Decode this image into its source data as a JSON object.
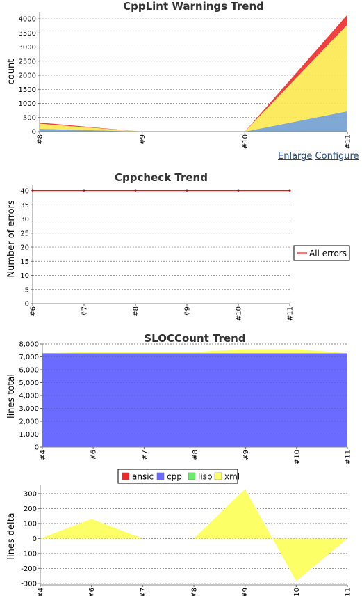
{
  "links": {
    "enlarge": "Enlarge",
    "configure": "Configure"
  },
  "chart_data": [
    {
      "type": "area",
      "stacked": true,
      "title": "CppLint Warnings Trend",
      "xlabel": "",
      "ylabel": "count",
      "categories": [
        "#8",
        "#9",
        "#10",
        "#11"
      ],
      "ylim": [
        0,
        4250
      ],
      "yticks": [
        0,
        500,
        1000,
        1500,
        2000,
        2500,
        3000,
        3500,
        4000
      ],
      "grid": true,
      "series": [
        {
          "values": [
            100,
            0,
            0,
            720
          ],
          "color": "#729fcf"
        },
        {
          "values": [
            180,
            0,
            0,
            3080
          ],
          "color": "#fce94f"
        },
        {
          "values": [
            40,
            0,
            0,
            350
          ],
          "color": "#ef2929"
        }
      ]
    },
    {
      "type": "line",
      "title": "Cppcheck Trend",
      "xlabel": "",
      "ylabel": "Number of errors",
      "categories": [
        "#6",
        "#7",
        "#8",
        "#9",
        "#10",
        "#11"
      ],
      "ylim": [
        0,
        42
      ],
      "yticks": [
        0,
        5,
        10,
        15,
        20,
        25,
        30,
        35,
        40
      ],
      "grid": true,
      "legend_position": "right",
      "series": [
        {
          "name": "All errors",
          "values": [
            40,
            40,
            40,
            40,
            40,
            40
          ],
          "color": "#cc0000"
        }
      ]
    },
    {
      "type": "area",
      "stacked": true,
      "title": "SLOCCount Trend",
      "xlabel": "",
      "ylabel": "lines total",
      "categories": [
        "#4",
        "#6",
        "#7",
        "#8",
        "#9",
        "#10",
        "#11"
      ],
      "ylim": [
        0,
        8000
      ],
      "yticks": [
        "0",
        "1,000",
        "2,000",
        "3,000",
        "4,000",
        "5,000",
        "6,000",
        "7,000",
        "8,000"
      ],
      "grid": true,
      "legend_position": "bottom",
      "series": [
        {
          "name": "ansic",
          "values": [
            30,
            30,
            30,
            30,
            30,
            30,
            30
          ],
          "color": "#ef2929"
        },
        {
          "name": "cpp",
          "values": [
            7250,
            7250,
            7250,
            7250,
            7250,
            7250,
            7250
          ],
          "color": "#6b6bff"
        },
        {
          "name": "lisp",
          "values": [
            0,
            0,
            0,
            0,
            0,
            0,
            0
          ],
          "color": "#66ee66"
        },
        {
          "name": "xml",
          "values": [
            0,
            100,
            100,
            100,
            330,
            330,
            0
          ],
          "color": "#fcff66"
        }
      ]
    },
    {
      "type": "area",
      "title": "",
      "xlabel": "",
      "ylabel": "lines delta",
      "categories": [
        "#4",
        "#6",
        "#7",
        "#8",
        "#9",
        "#10",
        "#11"
      ],
      "ylim": [
        -310,
        360
      ],
      "yticks": [
        -300,
        -200,
        -100,
        0,
        100,
        200,
        300
      ],
      "grid": true,
      "series": [
        {
          "values": [
            0,
            130,
            0,
            0,
            330,
            -285,
            0
          ],
          "color": "#fcff66"
        }
      ]
    }
  ]
}
